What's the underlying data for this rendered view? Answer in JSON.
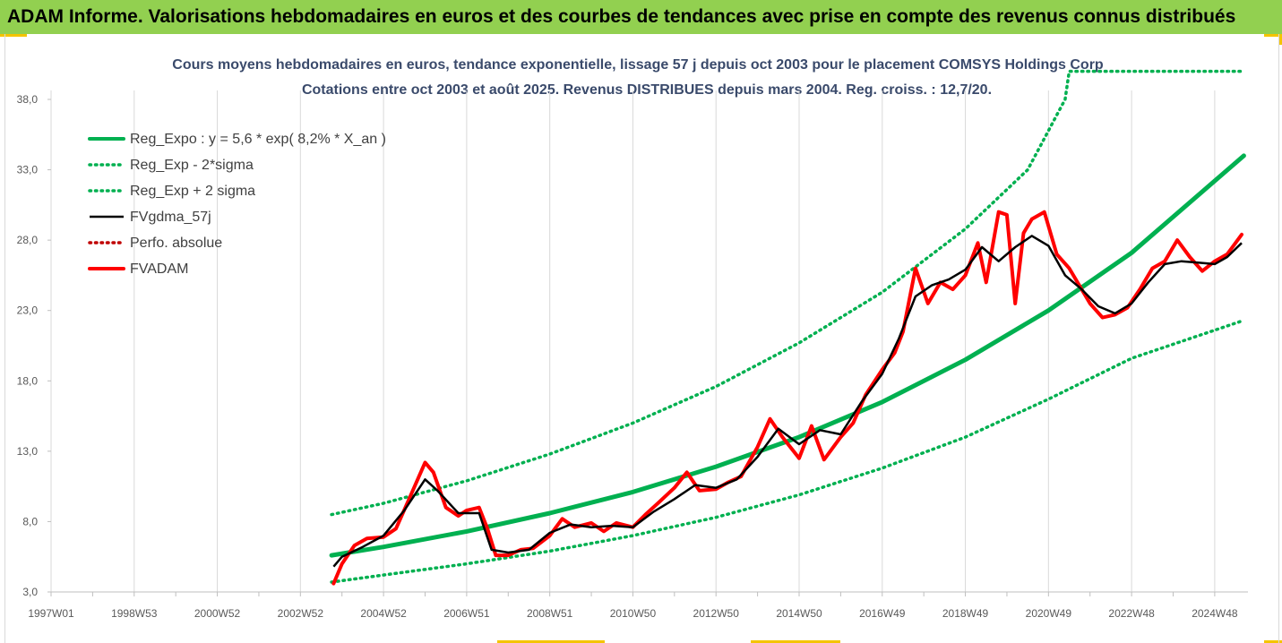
{
  "banner": {
    "title": "ADAM Informe. Valorisations hebdomadaires en euros et des courbes de tendances avec prise en compte des revenus connus distribués"
  },
  "colors": {
    "banner_bg": "#92d050",
    "corner_accent": "#f4c400",
    "reg_expo": "#00b050",
    "fvgdma": "#000000",
    "fvadam": "#ff0000",
    "perfo": "#c00000",
    "title_text": "#3a4a6b"
  },
  "chart_data": {
    "type": "line",
    "title": "Cours moyens hebdomadaires en euros, tendance exponentielle, lissage 57 j depuis oct 2003 pour le placement COMSYS Holdings Corp",
    "subtitle": "Cotations entre oct 2003 et août 2025. Revenus DISTRIBUES depuis mars 2004. Reg. croiss. : 12,7/20.",
    "xlabel": "",
    "ylabel": "",
    "x_tick_labels": [
      "1997W01",
      "1998W53",
      "2000W52",
      "2002W52",
      "2004W52",
      "2006W51",
      "2008W51",
      "2010W50",
      "2012W50",
      "2014W50",
      "2016W49",
      "2018W49",
      "2020W49",
      "2022W48",
      "2024W48"
    ],
    "x_ticks": [
      1997.0,
      1999.0,
      2001.0,
      2003.0,
      2005.0,
      2007.0,
      2009.0,
      2011.0,
      2013.0,
      2015.0,
      2017.0,
      2019.0,
      2021.0,
      2023.0,
      2025.0
    ],
    "x_range": [
      1997.0,
      2025.8
    ],
    "y_tick_labels": [
      "3,0",
      "8,0",
      "13,0",
      "18,0",
      "23,0",
      "28,0",
      "33,0",
      "38,0"
    ],
    "y_ticks": [
      3,
      8,
      13,
      18,
      23,
      28,
      33,
      38
    ],
    "ylim": [
      3,
      38
    ],
    "grid": "vertical",
    "legend_position": "top-left",
    "series": [
      {
        "name": "Reg_Expo : y = 5,6 * exp( 8,2% *  X_an )",
        "style": "thick-solid",
        "color": "#00b050",
        "x": [
          2003.75,
          2005,
          2007,
          2009,
          2011,
          2013,
          2015,
          2017,
          2019,
          2021,
          2023,
          2025.7
        ],
        "y": [
          5.6,
          6.2,
          7.3,
          8.6,
          10.1,
          11.9,
          14.0,
          16.5,
          19.5,
          23.0,
          27.1,
          34.0
        ]
      },
      {
        "name": "Reg_Exp - 2*sigma",
        "style": "dotted",
        "color": "#00b050",
        "x": [
          2003.75,
          2005,
          2007,
          2009,
          2011,
          2013,
          2015,
          2017,
          2019,
          2021,
          2023,
          2025.7
        ],
        "y": [
          3.7,
          4.2,
          5.0,
          5.9,
          7.0,
          8.3,
          9.9,
          11.8,
          14.0,
          16.7,
          19.6,
          22.3
        ]
      },
      {
        "name": "Reg_Exp + 2 sigma",
        "style": "dotted",
        "color": "#00b050",
        "x": [
          2003.75,
          2005,
          2007,
          2009,
          2011,
          2013,
          2015,
          2017,
          2019,
          2020.5,
          2021.4,
          2021.5,
          2025.7
        ],
        "y": [
          8.5,
          9.3,
          10.9,
          12.8,
          15.0,
          17.6,
          20.7,
          24.3,
          28.8,
          33.0,
          38.0,
          40.0,
          40.0
        ]
      },
      {
        "name": "FVgdma_57j",
        "style": "solid",
        "color": "#000000",
        "x": [
          2003.8,
          2004.0,
          2004.5,
          2005.0,
          2005.5,
          2006.0,
          2006.3,
          2006.8,
          2007.3,
          2007.6,
          2008.0,
          2008.5,
          2009.0,
          2009.5,
          2010.0,
          2010.5,
          2011.0,
          2011.5,
          2012.0,
          2012.5,
          2013.0,
          2013.5,
          2014.0,
          2014.5,
          2015.0,
          2015.5,
          2016.0,
          2016.5,
          2017.0,
          2017.4,
          2017.8,
          2018.2,
          2018.6,
          2019.0,
          2019.4,
          2019.8,
          2020.2,
          2020.6,
          2021.0,
          2021.4,
          2021.8,
          2022.2,
          2022.6,
          2023.0,
          2023.4,
          2023.8,
          2024.2,
          2024.6,
          2025.0,
          2025.3,
          2025.65
        ],
        "y": [
          4.8,
          5.5,
          6.2,
          7.0,
          8.8,
          11.0,
          10.2,
          8.6,
          8.6,
          6.0,
          5.8,
          6.0,
          7.2,
          7.8,
          7.6,
          7.7,
          7.6,
          8.7,
          9.6,
          10.6,
          10.4,
          11.0,
          12.6,
          14.6,
          13.5,
          14.5,
          14.2,
          16.5,
          18.5,
          21.0,
          24.0,
          24.8,
          25.2,
          25.9,
          27.5,
          26.5,
          27.5,
          28.3,
          27.6,
          25.5,
          24.5,
          23.3,
          22.8,
          23.5,
          25.0,
          26.3,
          26.5,
          26.4,
          26.3,
          26.8,
          27.8
        ]
      },
      {
        "name": "Perfo. absolue",
        "style": "dotted",
        "color": "#c00000",
        "x": [],
        "y": []
      },
      {
        "name": "FVADAM",
        "style": "thick-solid",
        "color": "#ff0000",
        "x": [
          2003.8,
          2004.0,
          2004.3,
          2004.6,
          2005.0,
          2005.3,
          2005.6,
          2006.0,
          2006.2,
          2006.5,
          2006.8,
          2007.0,
          2007.3,
          2007.5,
          2007.7,
          2008.0,
          2008.3,
          2008.6,
          2009.0,
          2009.3,
          2009.6,
          2010.0,
          2010.3,
          2010.6,
          2011.0,
          2011.3,
          2011.6,
          2012.0,
          2012.3,
          2012.6,
          2013.0,
          2013.3,
          2013.6,
          2014.0,
          2014.3,
          2014.6,
          2015.0,
          2015.3,
          2015.6,
          2016.0,
          2016.3,
          2016.6,
          2017.0,
          2017.3,
          2017.5,
          2017.8,
          2018.1,
          2018.4,
          2018.7,
          2019.0,
          2019.3,
          2019.5,
          2019.8,
          2020.0,
          2020.2,
          2020.4,
          2020.6,
          2020.9,
          2021.2,
          2021.5,
          2021.8,
          2022.0,
          2022.3,
          2022.6,
          2022.9,
          2023.2,
          2023.5,
          2023.8,
          2024.1,
          2024.4,
          2024.7,
          2025.0,
          2025.3,
          2025.65
        ],
        "y": [
          3.6,
          5.0,
          6.3,
          6.8,
          6.9,
          7.5,
          9.5,
          12.2,
          11.5,
          9.0,
          8.4,
          8.8,
          9.0,
          7.5,
          5.6,
          5.6,
          6.0,
          6.1,
          7.0,
          8.2,
          7.6,
          7.9,
          7.3,
          7.9,
          7.6,
          8.5,
          9.3,
          10.4,
          11.5,
          10.2,
          10.3,
          10.8,
          11.2,
          13.3,
          15.3,
          14.0,
          12.5,
          14.8,
          12.4,
          14.0,
          15.0,
          17.0,
          18.8,
          20.0,
          21.5,
          26.0,
          23.5,
          25.0,
          24.5,
          25.5,
          27.8,
          25.0,
          30.0,
          29.8,
          23.5,
          28.5,
          29.5,
          30.0,
          27.0,
          26.0,
          24.5,
          23.5,
          22.5,
          22.7,
          23.2,
          24.5,
          26.0,
          26.5,
          28.0,
          26.8,
          25.8,
          26.5,
          27.0,
          28.4
        ]
      }
    ]
  }
}
